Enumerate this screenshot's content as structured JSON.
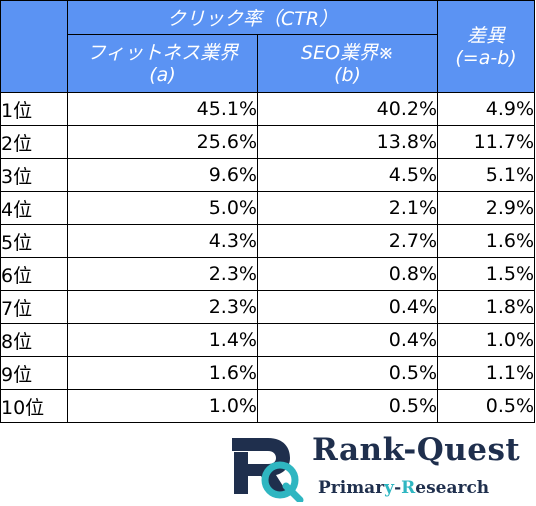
{
  "table": {
    "header_ctr": "クリック率（CTR）",
    "header_diff": [
      "差異",
      "(=a-b)"
    ],
    "header_fitness": [
      "フィットネス業界",
      "(a)"
    ],
    "header_seo": [
      "SEO業界※",
      "(b)"
    ],
    "rows": [
      {
        "rank": "1位",
        "fitness": "45.1%",
        "seo": "40.2%",
        "diff": "4.9%"
      },
      {
        "rank": "2位",
        "fitness": "25.6%",
        "seo": "13.8%",
        "diff": "11.7%"
      },
      {
        "rank": "3位",
        "fitness": "9.6%",
        "seo": "4.5%",
        "diff": "5.1%"
      },
      {
        "rank": "4位",
        "fitness": "5.0%",
        "seo": "2.1%",
        "diff": "2.9%"
      },
      {
        "rank": "5位",
        "fitness": "4.3%",
        "seo": "2.7%",
        "diff": "1.6%"
      },
      {
        "rank": "6位",
        "fitness": "2.3%",
        "seo": "0.8%",
        "diff": "1.5%"
      },
      {
        "rank": "7位",
        "fitness": "2.3%",
        "seo": "0.4%",
        "diff": "1.8%"
      },
      {
        "rank": "8位",
        "fitness": "1.4%",
        "seo": "0.4%",
        "diff": "1.0%"
      },
      {
        "rank": "9位",
        "fitness": "1.6%",
        "seo": "0.5%",
        "diff": "1.1%"
      },
      {
        "rank": "10位",
        "fitness": "1.0%",
        "seo": "0.5%",
        "diff": "0.5%"
      }
    ]
  },
  "logo": {
    "title_part1": "Rank-Q",
    "title_part2": "uest",
    "sub_part1": "Primar",
    "sub_accent1": "y",
    "sub_part2": "-",
    "sub_accent2": "R",
    "sub_part3": "esearch",
    "icon": "rq-monogram-icon"
  },
  "colors": {
    "header_bg": "#5b93f3",
    "logo_navy": "#1f2f4d",
    "logo_teal": "#2fb6c1"
  }
}
